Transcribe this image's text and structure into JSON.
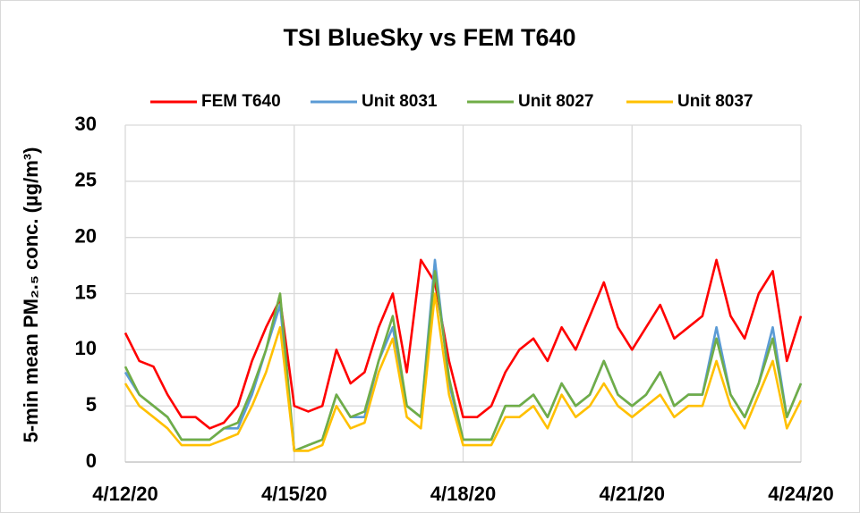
{
  "chart_data": {
    "type": "line",
    "title": "TSI BlueSky vs FEM T640",
    "y_label": "5-min mean PM₂.₅ conc. (µg/m³)",
    "categories": [
      "4/12/20",
      null,
      null,
      null,
      null,
      null,
      null,
      null,
      null,
      null,
      null,
      null,
      "4/15/20",
      null,
      null,
      null,
      null,
      null,
      null,
      null,
      null,
      null,
      null,
      null,
      "4/18/20",
      null,
      null,
      null,
      null,
      null,
      null,
      null,
      null,
      null,
      null,
      null,
      "4/21/20",
      null,
      null,
      null,
      null,
      null,
      null,
      null,
      null,
      null,
      null,
      null,
      "4/24/20"
    ],
    "series": [
      {
        "name": "FEM T640",
        "color": "#ff0000",
        "values": [
          11.5,
          9,
          8.5,
          6,
          4,
          4,
          3,
          3.5,
          5,
          9,
          12,
          14.5,
          5,
          4.5,
          5,
          10,
          7,
          8,
          12,
          15,
          8,
          18,
          16,
          9,
          4,
          4,
          5,
          8,
          10,
          11,
          9,
          12,
          10,
          13,
          16,
          12,
          10,
          12,
          14,
          11,
          12,
          13,
          18,
          13,
          11,
          15,
          17,
          9,
          13
        ]
      },
      {
        "name": "Unit 8031",
        "color": "#5b9bd5",
        "values": [
          8,
          6,
          5,
          4,
          2,
          2,
          2,
          3,
          3,
          6,
          10,
          14,
          1,
          1.5,
          2,
          6,
          4,
          4,
          9,
          12,
          5,
          4,
          18,
          7,
          2,
          2,
          2,
          5,
          5,
          6,
          4,
          7,
          5,
          6,
          9,
          6,
          5,
          6,
          8,
          5,
          6,
          6,
          12,
          6,
          4,
          7,
          12,
          4,
          7
        ]
      },
      {
        "name": "Unit 8027",
        "color": "#70ad47",
        "values": [
          8.5,
          6,
          5,
          4,
          2,
          2,
          2,
          3,
          3.5,
          6.5,
          10,
          15,
          1,
          1.5,
          2,
          6,
          4,
          4.5,
          9,
          13,
          5,
          4,
          17,
          7.5,
          2,
          2,
          2,
          5,
          5,
          6,
          4,
          7,
          5,
          6,
          9,
          6,
          5,
          6,
          8,
          5,
          6,
          6,
          11,
          6,
          4,
          7,
          11,
          4,
          7
        ]
      },
      {
        "name": "Unit 8037",
        "color": "#ffc000",
        "values": [
          7,
          5,
          4,
          3,
          1.5,
          1.5,
          1.5,
          2,
          2.5,
          5,
          8,
          12,
          1,
          1,
          1.5,
          5,
          3,
          3.5,
          8,
          11,
          4,
          3,
          15,
          6,
          1.5,
          1.5,
          1.5,
          4,
          4,
          5,
          3,
          6,
          4,
          5,
          7,
          5,
          4,
          5,
          6,
          4,
          5,
          5,
          9,
          5,
          3,
          6,
          9,
          3,
          5.5
        ]
      }
    ],
    "ylim": [
      0,
      30
    ],
    "yticks": [
      0,
      5,
      10,
      15,
      20,
      25,
      30
    ],
    "grid": true,
    "legend": "top"
  }
}
